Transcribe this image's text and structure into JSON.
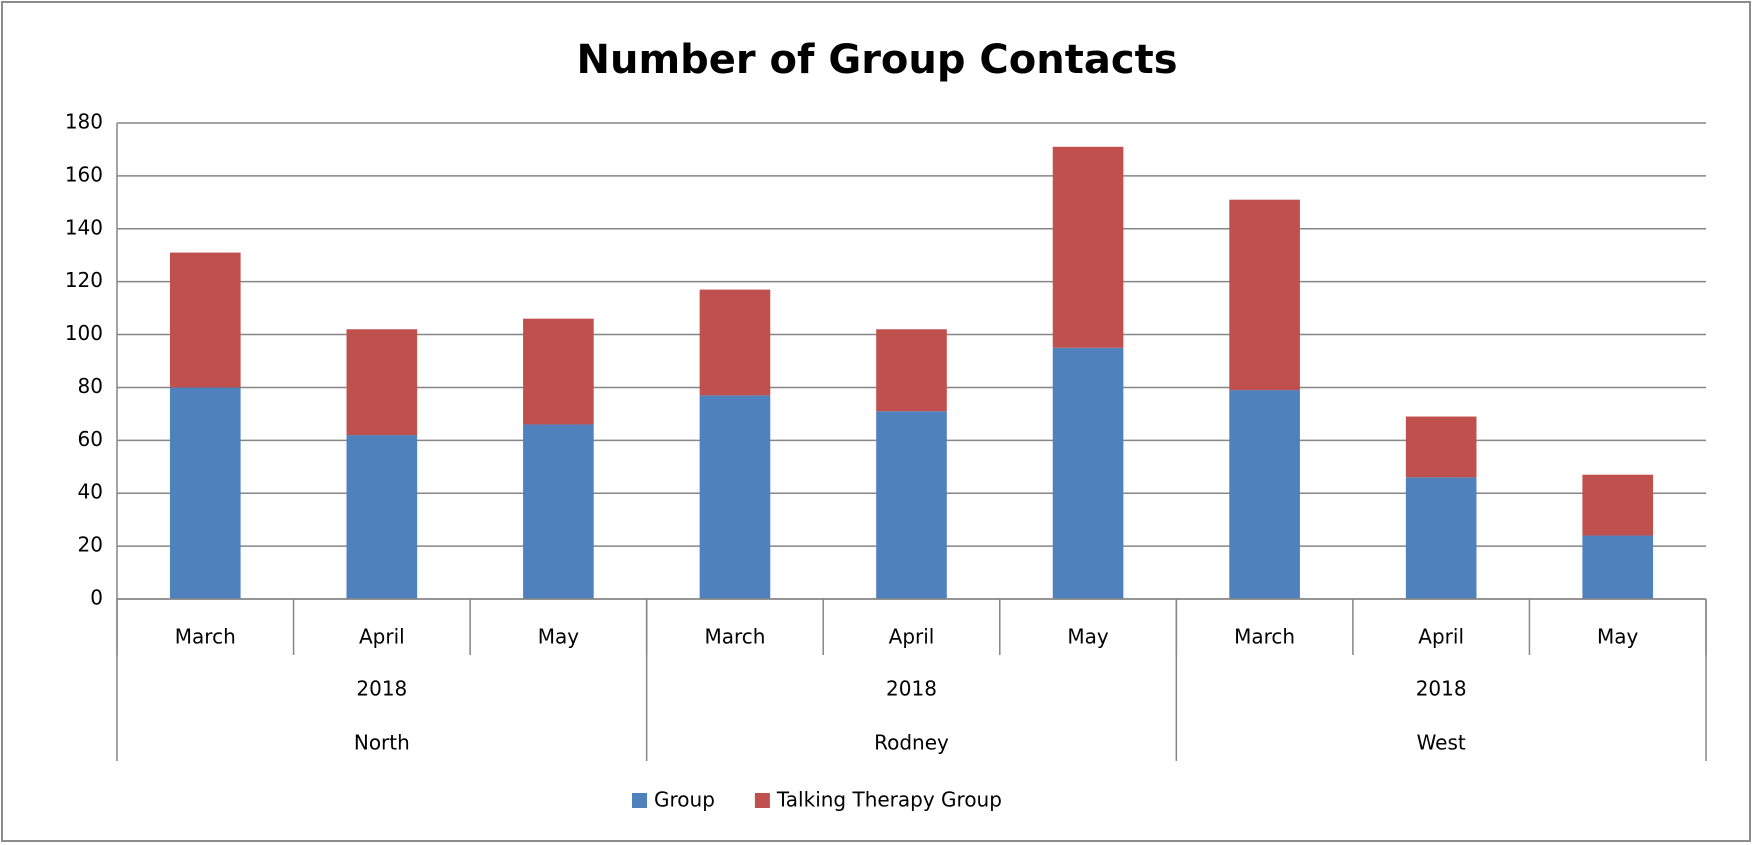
{
  "chart_data": {
    "type": "stacked_bar",
    "title": "Number of Group Contacts",
    "categories": [
      "March",
      "April",
      "May",
      "March",
      "April",
      "May",
      "March",
      "April",
      "May"
    ],
    "category_groups": [
      {
        "labels": [
          "2018",
          "2018",
          "2018"
        ]
      },
      {
        "labels": [
          "North",
          "Rodney",
          "West"
        ]
      }
    ],
    "series": [
      {
        "name": "Group",
        "color": "#4f81bd",
        "values": [
          80,
          62,
          66,
          77,
          71,
          95,
          79,
          46,
          24
        ]
      },
      {
        "name": "Talking Therapy Group",
        "color": "#c0504d",
        "values": [
          51,
          40,
          40,
          40,
          31,
          76,
          72,
          23,
          23
        ]
      }
    ],
    "ylim": [
      0,
      180
    ],
    "yticks": [
      0,
      20,
      40,
      60,
      80,
      100,
      120,
      140,
      160,
      180
    ],
    "grid": true,
    "legend": "bottom"
  }
}
